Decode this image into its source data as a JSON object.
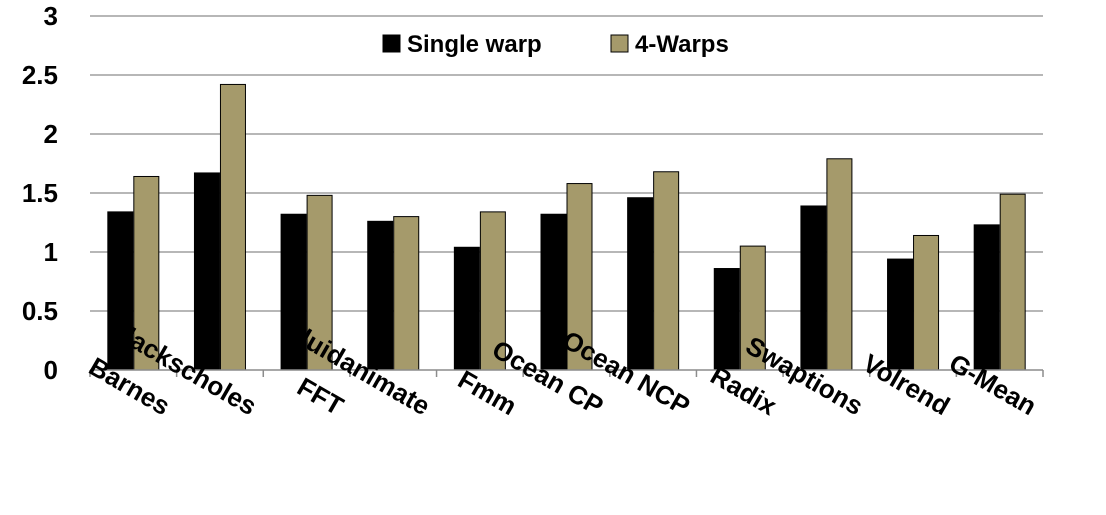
{
  "chart_data": {
    "type": "bar",
    "categories": [
      "Barnes",
      "Blackscholes",
      "FFT",
      "Fluidanimate",
      "Fmm",
      "Ocean CP",
      "Ocean NCP",
      "Radix",
      "Swaptions",
      "Volrend",
      "G-Mean"
    ],
    "series": [
      {
        "name": "Single warp",
        "color": "#000000",
        "values": [
          1.34,
          1.67,
          1.32,
          1.26,
          1.04,
          1.32,
          1.46,
          0.86,
          1.39,
          0.94,
          1.23
        ]
      },
      {
        "name": "4-Warps",
        "color": "#A59A6B",
        "values": [
          1.64,
          2.42,
          1.48,
          1.3,
          1.34,
          1.58,
          1.68,
          1.05,
          1.79,
          1.14,
          1.49
        ]
      }
    ],
    "ylim": [
      0,
      3
    ],
    "yticks": [
      "0",
      "0.5",
      "1",
      "1.5",
      "2",
      "2.5",
      "3"
    ],
    "ytick_values": [
      0,
      0.5,
      1,
      1.5,
      2,
      2.5,
      3
    ],
    "grid": true,
    "legend_position": "top-center",
    "title": "",
    "xlabel": "",
    "ylabel": ""
  }
}
